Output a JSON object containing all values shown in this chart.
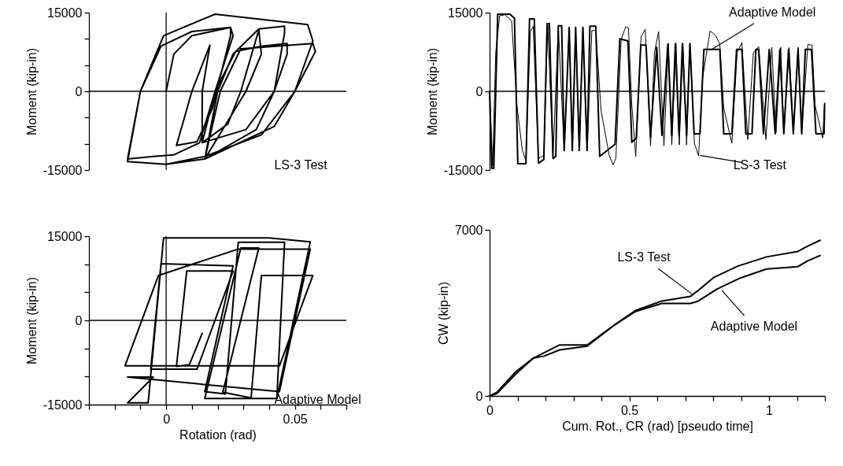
{
  "chart_data": [
    {
      "type": "line",
      "ylabel": "Moment (kip-in)",
      "xlim": [
        -0.03,
        0.07
      ],
      "ylim": [
        -15000,
        15000
      ],
      "tick_labels": "y",
      "yticks": [
        -15000,
        {
          "value": -10000,
          "label": null
        },
        {
          "value": -5000,
          "label": null
        },
        0,
        {
          "value": 5000,
          "label": null
        },
        {
          "value": 10000,
          "label": null
        },
        15000
      ],
      "ref_lines": [
        {
          "axis": "y",
          "value": 0
        },
        {
          "axis": "x",
          "value": 0
        }
      ],
      "annotations": [
        "LS-3 Test"
      ],
      "series": [
        {
          "color": "#000000",
          "x": [
            0,
            0.003,
            0.01,
            0.025,
            0.026,
            0.019,
            0.013,
            0.003,
            -0.005,
            -0.015,
            -0.01,
            -0.002,
            0.01,
            0.025,
            0.025,
            0.018,
            0.012,
            0.004,
            0.01,
            0.017,
            0.014,
            0.014,
            0.019,
            0.027,
            0.037,
            0.047,
            0.047,
            0.042,
            0.031,
            0.014,
            0.024,
            0.029,
            0.036,
            0.037,
            0.031,
            0.015,
            0.02,
            0.026,
            0.036,
            0.046,
            0.046,
            0.042,
            0.035,
            0.015,
            0.021,
            0.029,
            0.057,
            0.058,
            0.05,
            0.037,
            0.015,
            0,
            -0.015,
            -0.01,
            -0.001,
            0.019,
            0.055,
            0.057,
            0.05,
            0.042,
            0.015,
            0
          ],
          "values": [
            0,
            7100,
            10600,
            12200,
            10600,
            0,
            -9800,
            -12100,
            -12400,
            -12900,
            0,
            8600,
            11400,
            12200,
            10600,
            -3200,
            -9600,
            -10300,
            0,
            8800,
            0,
            -9800,
            0,
            7600,
            8600,
            9100,
            7100,
            0,
            -7300,
            -9800,
            -6200,
            0,
            11700,
            7100,
            0,
            -12900,
            0,
            7100,
            11900,
            12400,
            11100,
            0,
            -7300,
            -12900,
            0,
            8100,
            9100,
            7600,
            0,
            -8300,
            -12400,
            -13900,
            -13400,
            0,
            10600,
            14700,
            12700,
            9600,
            0,
            -6700,
            -12900,
            -13900
          ]
        }
      ]
    },
    {
      "type": "line",
      "ylabel": "Moment (kip-in)",
      "xlim": [
        0,
        1.2
      ],
      "ylim": [
        -15000,
        15000
      ],
      "tick_labels": "y",
      "yticks": [
        -15000,
        0,
        15000
      ],
      "ref_lines": [
        {
          "axis": "y",
          "value": 0
        }
      ],
      "annotations": [
        {
          "text": "Adaptive Model",
          "x": 0.795,
          "y": 8000
        },
        {
          "text": "LS-3 Test",
          "x": 0.753,
          "y": -12200
        }
      ],
      "series": [
        {
          "color": "#000000",
          "x": [
            0,
            0.008,
            0.015,
            0.029,
            0.073,
            0.089,
            0.101,
            0.13,
            0.143,
            0.16,
            0.175,
            0.194,
            0.206,
            0.214,
            0.227,
            0.237,
            0.246,
            0.258,
            0.267,
            0.285,
            0.296,
            0.308,
            0.321,
            0.334,
            0.349,
            0.359,
            0.38,
            0.394,
            0.449,
            0.466,
            0.495,
            0.509,
            0.525,
            0.541,
            0.56,
            0.576,
            0.598,
            0.617,
            0.638,
            0.652,
            0.665,
            0.678,
            0.69,
            0.705,
            0.717,
            0.732,
            0.753,
            0.767,
            0.824,
            0.838,
            0.867,
            0.884,
            0.903,
            0.917,
            0.939,
            0.953,
            0.963,
            0.98,
            1.001,
            1.022,
            1.039,
            1.053,
            1.07,
            1.087,
            1.104,
            1.117,
            1.13,
            1.152,
            1.168,
            1.197,
            1.199
          ],
          "values": [
            0,
            -14700,
            -14700,
            14700,
            14700,
            13900,
            -13800,
            -13800,
            13800,
            13800,
            -13700,
            -13000,
            12900,
            12900,
            -12800,
            -12400,
            12500,
            12500,
            -11300,
            12200,
            -11300,
            12200,
            -11300,
            12200,
            -11300,
            12400,
            12400,
            -12400,
            -10100,
            10000,
            9600,
            -9700,
            -8900,
            8800,
            8800,
            -8700,
            8400,
            -8400,
            9000,
            -8400,
            9100,
            -8400,
            9100,
            -8400,
            9100,
            -8100,
            -8100,
            8000,
            8000,
            -8100,
            -8100,
            8000,
            8000,
            -8100,
            -8100,
            8000,
            8000,
            -8100,
            8000,
            -8100,
            8000,
            -8100,
            8000,
            -8100,
            8000,
            -8100,
            8000,
            8000,
            -8100,
            -8100,
            -2400
          ]
        },
        {
          "color": "#000000",
          "x": [
            0,
            0.011,
            0.022,
            0.036,
            0.055,
            0.079,
            0.098,
            0.117,
            0.13,
            0.146,
            0.156,
            0.175,
            0.194,
            0.208,
            0.227,
            0.246,
            0.267,
            0.285,
            0.296,
            0.308,
            0.321,
            0.334,
            0.349,
            0.366,
            0.38,
            0.399,
            0.428,
            0.442,
            0.452,
            0.471,
            0.487,
            0.497,
            0.509,
            0.523,
            0.542,
            0.557,
            0.576,
            0.59,
            0.605,
            0.624,
            0.64,
            0.652,
            0.667,
            0.679,
            0.692,
            0.705,
            0.717,
            0.733,
            0.748,
            0.762,
            0.789,
            0.81,
            0.824,
            0.838,
            0.867,
            0.886,
            0.903,
            0.924,
            0.944,
            0.963,
            0.989,
            1.01,
            1.025,
            1.042,
            1.053,
            1.072,
            1.087,
            1.104,
            1.117,
            1.139,
            1.154,
            1.165,
            1.192,
            1.199
          ],
          "values": [
            0,
            -14200,
            7400,
            14400,
            14600,
            13400,
            -2700,
            -11200,
            -13200,
            11400,
            12400,
            -12800,
            -12200,
            12600,
            -12400,
            12400,
            -11400,
            12100,
            -11400,
            12100,
            -11400,
            12100,
            -11400,
            11600,
            11600,
            -3700,
            -12200,
            -14000,
            -12700,
            9900,
            12300,
            12100,
            -2700,
            -12400,
            10400,
            11800,
            -10400,
            7400,
            11400,
            -10400,
            9100,
            -10200,
            9100,
            -10200,
            9100,
            -10200,
            9100,
            -9900,
            -12300,
            2400,
            11500,
            10600,
            8900,
            -3200,
            -9900,
            7400,
            9300,
            -9200,
            7400,
            8500,
            -9200,
            8400,
            -7900,
            8400,
            -7900,
            8400,
            -7900,
            8400,
            -7900,
            8900,
            8800,
            -2700,
            -8900,
            -2200
          ]
        }
      ]
    },
    {
      "type": "line",
      "xlabel": "Rotation (rad)",
      "ylabel": "Moment (kip-in)",
      "xlim": [
        -0.03,
        0.07
      ],
      "ylim": [
        -15000,
        15000
      ],
      "xticks": [
        {
          "value": -0.03,
          "label": null
        },
        {
          "value": -0.02,
          "label": null
        },
        {
          "value": -0.01,
          "label": null
        },
        0,
        {
          "value": 0.01,
          "label": null
        },
        {
          "value": 0.02,
          "label": null
        },
        {
          "value": 0.03,
          "label": null
        },
        {
          "value": 0.04,
          "label": null
        },
        0.05,
        {
          "value": 0.06,
          "label": null
        },
        {
          "value": 0.07,
          "label": null
        }
      ],
      "yticks": [
        -15000,
        {
          "value": -10000,
          "label": null
        },
        {
          "value": -5000,
          "label": null
        },
        0,
        {
          "value": 5000,
          "label": null
        },
        {
          "value": 10000,
          "label": null
        },
        15000
      ],
      "ref_lines": [
        {
          "axis": "y",
          "value": 0
        },
        {
          "axis": "x",
          "value": 0
        }
      ],
      "annotations": [
        "Adaptive Model"
      ],
      "series": [
        {
          "color": "#000000",
          "x": [
            0.014,
            0.009,
            0.004,
            0.008,
            0.026,
            0.012,
            -0.006,
            -0.002,
            0.026,
            0.015,
            0.023,
            0.028,
            0.046,
            0.043,
            0.015,
            0.029,
            0.036,
            0.022,
            0.033,
            0.037,
            0.057,
            0.044,
            -0.016,
            -0.003,
            0.028,
            0.056,
            0.044,
            -0.015,
            -0.005,
            -0.015,
            -0.007,
            -0.001,
            0.04,
            0.056,
            0.043
          ],
          "values": [
            -2300,
            -7900,
            -8200,
            8800,
            8800,
            -8700,
            -8700,
            10100,
            9700,
            -12700,
            -13100,
            13900,
            13900,
            -13900,
            -13900,
            12900,
            12900,
            -12800,
            -13800,
            8000,
            8000,
            -8100,
            -8100,
            8000,
            12700,
            12700,
            -12700,
            -10100,
            -10100,
            -14700,
            -14700,
            14700,
            14700,
            14000,
            -13900
          ]
        }
      ]
    },
    {
      "type": "line",
      "xlabel": "Cum. Rot., CR (rad) [pseudo time]",
      "ylabel": "CW (kip-in)",
      "xlim": [
        0,
        1.2
      ],
      "ylim": [
        0,
        7000
      ],
      "xticks": [
        0,
        {
          "value": 0.1,
          "label": null
        },
        {
          "value": 0.2,
          "label": null
        },
        {
          "value": 0.3,
          "label": null
        },
        {
          "value": 0.4,
          "label": null
        },
        0.5,
        {
          "value": 0.6,
          "label": null
        },
        {
          "value": 0.7,
          "label": null
        },
        {
          "value": 0.8,
          "label": null
        },
        {
          "value": 0.9,
          "label": null
        },
        1,
        {
          "value": 1.1,
          "label": null
        },
        {
          "value": 1.2,
          "label": null
        }
      ],
      "yticks": [
        0,
        7000
      ],
      "annotations": [
        {
          "text": "LS-3 Test",
          "x": 0.724,
          "y": 4300
        },
        {
          "text": "Adaptive Model",
          "x": 0.831,
          "y": 4450
        }
      ],
      "series": [
        {
          "color": "#000000",
          "x": [
            0,
            0.026,
            0.092,
            0.157,
            0.251,
            0.349,
            0.448,
            0.522,
            0.616,
            0.719,
            0.747,
            0.803,
            0.888,
            0.991,
            1.103,
            1.136,
            1.183
          ],
          "values": [
            0,
            150,
            1000,
            1600,
            2150,
            2150,
            3000,
            3600,
            4000,
            4200,
            4450,
            5000,
            5470,
            5860,
            6090,
            6300,
            6560
          ]
        },
        {
          "color": "#000000",
          "x": [
            0,
            0.026,
            0.092,
            0.157,
            0.195,
            0.251,
            0.349,
            0.448,
            0.522,
            0.616,
            0.719,
            0.747,
            0.813,
            0.897,
            0.991,
            1.103,
            1.136,
            1.183
          ],
          "values": [
            0,
            100,
            900,
            1600,
            1680,
            1940,
            2100,
            3000,
            3560,
            3900,
            3900,
            4000,
            4500,
            4970,
            5350,
            5450,
            5680,
            5920
          ]
        }
      ]
    }
  ]
}
